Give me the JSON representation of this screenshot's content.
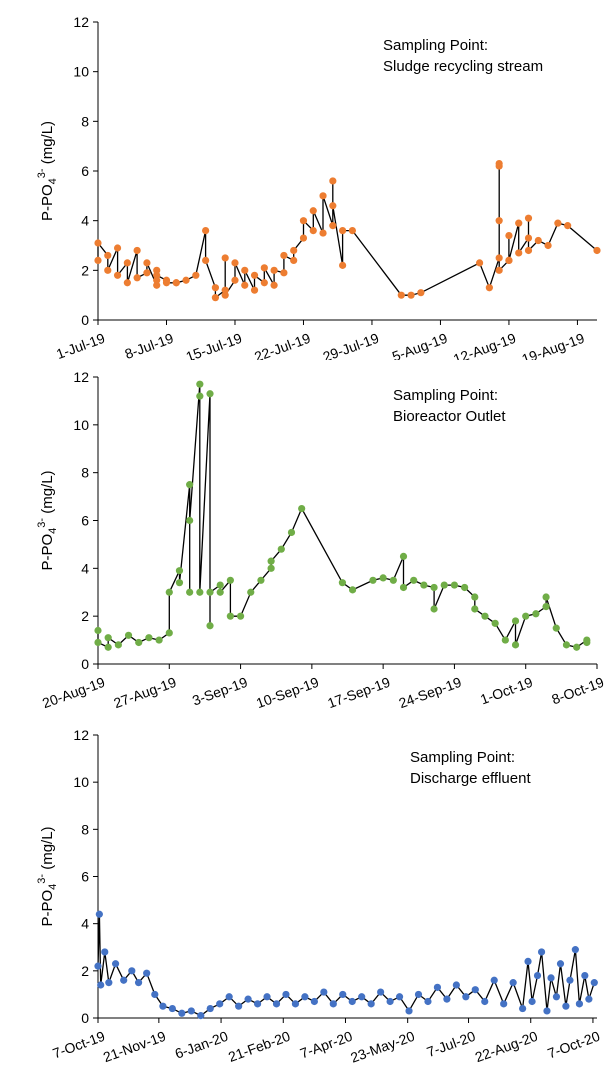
{
  "chart_data": [
    {
      "type": "line",
      "annotation": [
        "Sampling Point:",
        "Sludge recycling stream"
      ],
      "ylabel": {
        "main": "P-PO",
        "sub": "4",
        "sup": "3-",
        "unit": " (mg/L)"
      },
      "ylim": [
        0,
        12
      ],
      "yticks": [
        "0",
        "2",
        "4",
        "6",
        "8",
        "10",
        "12"
      ],
      "xlim": [
        "2019-07-01",
        "2019-08-21"
      ],
      "xticks": [
        {
          "date": "2019-07-01",
          "label": "1-Jul-19"
        },
        {
          "date": "2019-07-08",
          "label": "8-Jul-19"
        },
        {
          "date": "2019-07-15",
          "label": "15-Jul-19"
        },
        {
          "date": "2019-07-22",
          "label": "22-Jul-19"
        },
        {
          "date": "2019-07-29",
          "label": "29-Jul-19"
        },
        {
          "date": "2019-08-05",
          "label": "5-Aug-19"
        },
        {
          "date": "2019-08-12",
          "label": "12-Aug-19"
        },
        {
          "date": "2019-08-19",
          "label": "19-Aug-19"
        }
      ],
      "marker_color": "#ED7D31",
      "line_color": "#000000",
      "series": [
        {
          "x": [
            "2019-07-01",
            "2019-07-01",
            "2019-07-02",
            "2019-07-02",
            "2019-07-03",
            "2019-07-03",
            "2019-07-04",
            "2019-07-04",
            "2019-07-05",
            "2019-07-05",
            "2019-07-06",
            "2019-07-06",
            "2019-07-07",
            "2019-07-07",
            "2019-07-07",
            "2019-07-07",
            "2019-07-08",
            "2019-07-08",
            "2019-07-09",
            "2019-07-09",
            "2019-07-10",
            "2019-07-11",
            "2019-07-12",
            "2019-07-12",
            "2019-07-13",
            "2019-07-13",
            "2019-07-14",
            "2019-07-14",
            "2019-07-14",
            "2019-07-15",
            "2019-07-15",
            "2019-07-16",
            "2019-07-16",
            "2019-07-17",
            "2019-07-17",
            "2019-07-18",
            "2019-07-18",
            "2019-07-19",
            "2019-07-19",
            "2019-07-20",
            "2019-07-20",
            "2019-07-21",
            "2019-07-21",
            "2019-07-22",
            "2019-07-22",
            "2019-07-23",
            "2019-07-23",
            "2019-07-24",
            "2019-07-24",
            "2019-07-25",
            "2019-07-25",
            "2019-07-25",
            "2019-07-26",
            "2019-07-26",
            "2019-07-27",
            "2019-08-01",
            "2019-08-02",
            "2019-08-03",
            "2019-08-09",
            "2019-08-10",
            "2019-08-11",
            "2019-08-11",
            "2019-08-11",
            "2019-08-11",
            "2019-08-11",
            "2019-08-12",
            "2019-08-12",
            "2019-08-12",
            "2019-08-13",
            "2019-08-13",
            "2019-08-14",
            "2019-08-14",
            "2019-08-14",
            "2019-08-15",
            "2019-08-16",
            "2019-08-17",
            "2019-08-18",
            "2019-08-21"
          ],
          "y": [
            2.4,
            3.1,
            2.6,
            2.0,
            2.9,
            1.8,
            2.3,
            1.5,
            2.8,
            1.7,
            1.9,
            2.3,
            1.4,
            2.0,
            1.6,
            1.8,
            1.6,
            1.5,
            1.5,
            1.5,
            1.6,
            1.8,
            3.6,
            2.4,
            1.3,
            0.9,
            1.2,
            2.5,
            1.0,
            1.6,
            2.3,
            1.4,
            2.0,
            1.2,
            1.8,
            1.5,
            2.1,
            1.4,
            2.0,
            1.9,
            2.6,
            2.4,
            2.8,
            3.3,
            4.0,
            3.6,
            4.4,
            3.5,
            5.0,
            3.8,
            5.6,
            4.6,
            2.2,
            3.6,
            3.6,
            1.0,
            1.0,
            1.1,
            2.3,
            1.3,
            2.5,
            6.2,
            4.0,
            6.3,
            2.0,
            2.4,
            3.4,
            2.4,
            3.9,
            2.7,
            3.3,
            4.1,
            2.8,
            3.2,
            3.0,
            3.9,
            3.8,
            2.8
          ]
        }
      ]
    },
    {
      "type": "line",
      "annotation": [
        "Sampling Point:",
        "Bioreactor Outlet"
      ],
      "ylabel": {
        "main": "P-PO",
        "sub": "4",
        "sup": "3-",
        "unit": " (mg/L)"
      },
      "ylim": [
        0,
        12
      ],
      "yticks": [
        "0",
        "2",
        "4",
        "6",
        "8",
        "10",
        "12"
      ],
      "xlim": [
        "2019-08-20",
        "2019-10-08"
      ],
      "xticks": [
        {
          "date": "2019-08-20",
          "label": "20-Aug-19"
        },
        {
          "date": "2019-08-27",
          "label": "27-Aug-19"
        },
        {
          "date": "2019-09-03",
          "label": "3-Sep-19"
        },
        {
          "date": "2019-09-10",
          "label": "10-Sep-19"
        },
        {
          "date": "2019-09-17",
          "label": "17-Sep-19"
        },
        {
          "date": "2019-09-24",
          "label": "24-Sep-19"
        },
        {
          "date": "2019-10-01",
          "label": "1-Oct-19"
        },
        {
          "date": "2019-10-08",
          "label": "8-Oct-19"
        }
      ],
      "marker_color": "#70AD47",
      "line_color": "#000000",
      "series": [
        {
          "x": [
            "2019-08-20",
            "2019-08-20",
            "2019-08-21",
            "2019-08-21",
            "2019-08-22",
            "2019-08-23",
            "2019-08-24",
            "2019-08-25",
            "2019-08-26",
            "2019-08-27",
            "2019-08-27",
            "2019-08-28",
            "2019-08-28",
            "2019-08-29",
            "2019-08-29",
            "2019-08-29",
            "2019-08-30",
            "2019-08-30",
            "2019-08-30",
            "2019-08-31",
            "2019-08-31",
            "2019-08-31",
            "2019-09-01",
            "2019-09-01",
            "2019-09-02",
            "2019-09-02",
            "2019-09-03",
            "2019-09-04",
            "2019-09-05",
            "2019-09-06",
            "2019-09-06",
            "2019-09-07",
            "2019-09-08",
            "2019-09-09",
            "2019-09-13",
            "2019-09-14",
            "2019-09-16",
            "2019-09-17",
            "2019-09-18",
            "2019-09-19",
            "2019-09-19",
            "2019-09-20",
            "2019-09-21",
            "2019-09-22",
            "2019-09-22",
            "2019-09-23",
            "2019-09-24",
            "2019-09-25",
            "2019-09-26",
            "2019-09-26",
            "2019-09-27",
            "2019-09-28",
            "2019-09-29",
            "2019-09-30",
            "2019-09-30",
            "2019-10-01",
            "2019-10-02",
            "2019-10-03",
            "2019-10-03",
            "2019-10-04",
            "2019-10-05",
            "2019-10-06",
            "2019-10-07",
            "2019-10-07"
          ],
          "y": [
            1.4,
            0.9,
            0.7,
            1.1,
            0.8,
            1.2,
            0.9,
            1.1,
            1.0,
            1.3,
            3.0,
            3.9,
            3.4,
            7.5,
            3.0,
            6.0,
            11.7,
            11.2,
            3.0,
            11.3,
            1.6,
            3.0,
            3.3,
            3.0,
            3.5,
            2.0,
            2.0,
            3.0,
            3.5,
            4.0,
            4.3,
            4.8,
            5.5,
            6.5,
            3.4,
            3.1,
            3.5,
            3.6,
            3.5,
            4.5,
            3.2,
            3.5,
            3.3,
            3.2,
            2.3,
            3.3,
            3.3,
            3.2,
            2.8,
            2.3,
            2.0,
            1.7,
            1.0,
            1.8,
            0.8,
            2.0,
            2.1,
            2.4,
            2.8,
            1.5,
            0.8,
            0.7,
            1.0,
            0.9
          ]
        }
      ]
    },
    {
      "type": "line",
      "annotation": [
        "Sampling Point:",
        "Discharge effluent"
      ],
      "ylabel": {
        "main": "P-PO",
        "sub": "4",
        "sup": "3-",
        "unit": " (mg/L)"
      },
      "ylim": [
        0,
        12
      ],
      "yticks": [
        "0",
        "2",
        "4",
        "6",
        "8",
        "10",
        "12"
      ],
      "xlim": [
        "2019-10-07",
        "2020-10-10"
      ],
      "xticks": [
        {
          "date": "2019-10-07",
          "label": "7-Oct-19"
        },
        {
          "date": "2019-11-21",
          "label": "21-Nov-19"
        },
        {
          "date": "2020-01-06",
          "label": "6-Jan-20"
        },
        {
          "date": "2020-02-21",
          "label": "21-Feb-20"
        },
        {
          "date": "2020-04-07",
          "label": "7-Apr-20"
        },
        {
          "date": "2020-05-23",
          "label": "23-May-20"
        },
        {
          "date": "2020-07-07",
          "label": "7-Jul-20"
        },
        {
          "date": "2020-08-22",
          "label": "22-Aug-20"
        },
        {
          "date": "2020-10-07",
          "label": "7-Oct-20"
        }
      ],
      "marker_color": "#4472C4",
      "line_color": "#000000",
      "series": [
        {
          "x": [
            "2019-10-07",
            "2019-10-08",
            "2019-10-09",
            "2019-10-12",
            "2019-10-15",
            "2019-10-20",
            "2019-10-26",
            "2019-11-01",
            "2019-11-06",
            "2019-11-12",
            "2019-11-18",
            "2019-11-24",
            "2019-12-01",
            "2019-12-08",
            "2019-12-15",
            "2019-12-22",
            "2019-12-29",
            "2020-01-05",
            "2020-01-12",
            "2020-01-19",
            "2020-01-26",
            "2020-02-02",
            "2020-02-09",
            "2020-02-16",
            "2020-02-23",
            "2020-03-01",
            "2020-03-08",
            "2020-03-15",
            "2020-03-22",
            "2020-03-29",
            "2020-04-05",
            "2020-04-12",
            "2020-04-19",
            "2020-04-26",
            "2020-05-03",
            "2020-05-10",
            "2020-05-17",
            "2020-05-24",
            "2020-05-31",
            "2020-06-07",
            "2020-06-14",
            "2020-06-21",
            "2020-06-28",
            "2020-07-05",
            "2020-07-12",
            "2020-07-19",
            "2020-07-26",
            "2020-08-02",
            "2020-08-09",
            "2020-08-16",
            "2020-08-20",
            "2020-08-23",
            "2020-08-27",
            "2020-08-30",
            "2020-09-03",
            "2020-09-06",
            "2020-09-10",
            "2020-09-13",
            "2020-09-17",
            "2020-09-20",
            "2020-09-24",
            "2020-09-27",
            "2020-10-01",
            "2020-10-04",
            "2020-10-08"
          ],
          "y": [
            2.2,
            4.4,
            1.4,
            2.8,
            1.5,
            2.3,
            1.6,
            2.0,
            1.5,
            1.9,
            1.0,
            0.5,
            0.4,
            0.2,
            0.3,
            0.1,
            0.4,
            0.6,
            0.9,
            0.5,
            0.8,
            0.6,
            0.9,
            0.6,
            1.0,
            0.6,
            0.9,
            0.7,
            1.1,
            0.6,
            1.0,
            0.7,
            0.9,
            0.6,
            1.1,
            0.7,
            0.9,
            0.3,
            1.0,
            0.7,
            1.3,
            0.8,
            1.4,
            0.9,
            1.2,
            0.7,
            1.6,
            0.6,
            1.5,
            0.4,
            2.4,
            0.7,
            1.8,
            2.8,
            0.3,
            1.7,
            0.9,
            2.3,
            0.5,
            1.6,
            2.9,
            0.6,
            1.8,
            0.8,
            1.5
          ]
        }
      ]
    }
  ]
}
